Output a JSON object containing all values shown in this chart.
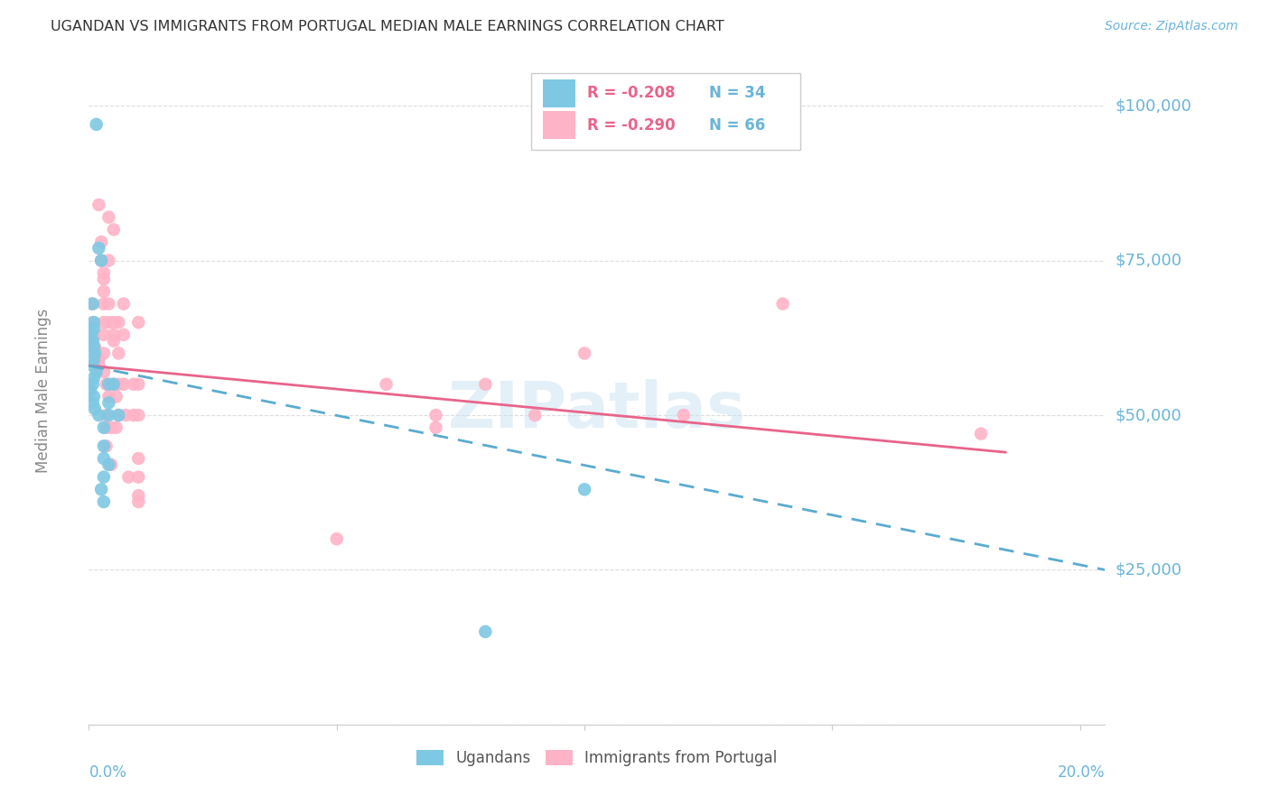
{
  "title": "UGANDAN VS IMMIGRANTS FROM PORTUGAL MEDIAN MALE EARNINGS CORRELATION CHART",
  "source": "Source: ZipAtlas.com",
  "ylabel": "Median Male Earnings",
  "y_ticks": [
    0,
    25000,
    50000,
    75000,
    100000
  ],
  "y_tick_labels": [
    "",
    "$25,000",
    "$50,000",
    "$75,000",
    "$100,000"
  ],
  "xmin": 0.0,
  "xmax": 0.205,
  "ymin": 0,
  "ymax": 108000,
  "legend_r_blue": "R = -0.208",
  "legend_n_blue": "N = 34",
  "legend_r_pink": "R = -0.290",
  "legend_n_pink": "N = 66",
  "legend_label_blue": "Ugandans",
  "legend_label_pink": "Immigrants from Portugal",
  "blue_color": "#7ec8e3",
  "blue_line_color": "#5aabcf",
  "pink_color": "#ffb3c6",
  "pink_line_color": "#e8648a",
  "blue_scatter": [
    [
      0.0015,
      97000
    ],
    [
      0.0008,
      68000
    ],
    [
      0.002,
      77000
    ],
    [
      0.0025,
      75000
    ],
    [
      0.001,
      65000
    ],
    [
      0.001,
      64000
    ],
    [
      0.0005,
      63000
    ],
    [
      0.0008,
      62000
    ],
    [
      0.001,
      61000
    ],
    [
      0.0012,
      60000
    ],
    [
      0.001,
      59000
    ],
    [
      0.0008,
      58000
    ],
    [
      0.0015,
      57000
    ],
    [
      0.001,
      56000
    ],
    [
      0.0008,
      55000
    ],
    [
      0.0003,
      54000
    ],
    [
      0.001,
      53000
    ],
    [
      0.0008,
      52000
    ],
    [
      0.0012,
      51000
    ],
    [
      0.002,
      50000
    ],
    [
      0.003,
      48000
    ],
    [
      0.003,
      45000
    ],
    [
      0.003,
      43000
    ],
    [
      0.003,
      40000
    ],
    [
      0.0025,
      38000
    ],
    [
      0.003,
      36000
    ],
    [
      0.004,
      55000
    ],
    [
      0.004,
      52000
    ],
    [
      0.004,
      50000
    ],
    [
      0.004,
      42000
    ],
    [
      0.005,
      55000
    ],
    [
      0.006,
      50000
    ],
    [
      0.1,
      38000
    ],
    [
      0.08,
      15000
    ]
  ],
  "pink_scatter": [
    [
      0.0005,
      68000
    ],
    [
      0.0008,
      65000
    ],
    [
      0.001,
      63000
    ],
    [
      0.0008,
      62000
    ],
    [
      0.0012,
      61000
    ],
    [
      0.0015,
      60000
    ],
    [
      0.002,
      59000
    ],
    [
      0.002,
      58000
    ],
    [
      0.002,
      84000
    ],
    [
      0.0025,
      78000
    ],
    [
      0.0025,
      75000
    ],
    [
      0.003,
      73000
    ],
    [
      0.003,
      72000
    ],
    [
      0.003,
      70000
    ],
    [
      0.003,
      68000
    ],
    [
      0.003,
      65000
    ],
    [
      0.003,
      63000
    ],
    [
      0.003,
      60000
    ],
    [
      0.003,
      57000
    ],
    [
      0.0035,
      55000
    ],
    [
      0.0035,
      50000
    ],
    [
      0.0035,
      48000
    ],
    [
      0.0035,
      45000
    ],
    [
      0.004,
      82000
    ],
    [
      0.004,
      75000
    ],
    [
      0.004,
      68000
    ],
    [
      0.004,
      65000
    ],
    [
      0.004,
      55000
    ],
    [
      0.004,
      53000
    ],
    [
      0.0045,
      48000
    ],
    [
      0.0045,
      42000
    ],
    [
      0.005,
      80000
    ],
    [
      0.005,
      65000
    ],
    [
      0.005,
      63000
    ],
    [
      0.005,
      62000
    ],
    [
      0.005,
      55000
    ],
    [
      0.0055,
      53000
    ],
    [
      0.0055,
      48000
    ],
    [
      0.006,
      65000
    ],
    [
      0.006,
      60000
    ],
    [
      0.006,
      55000
    ],
    [
      0.006,
      50000
    ],
    [
      0.007,
      68000
    ],
    [
      0.007,
      63000
    ],
    [
      0.007,
      55000
    ],
    [
      0.0075,
      50000
    ],
    [
      0.008,
      40000
    ],
    [
      0.009,
      55000
    ],
    [
      0.009,
      50000
    ],
    [
      0.01,
      43000
    ],
    [
      0.01,
      65000
    ],
    [
      0.01,
      55000
    ],
    [
      0.01,
      50000
    ],
    [
      0.01,
      40000
    ],
    [
      0.01,
      37000
    ],
    [
      0.01,
      36000
    ],
    [
      0.05,
      30000
    ],
    [
      0.06,
      55000
    ],
    [
      0.07,
      50000
    ],
    [
      0.07,
      48000
    ],
    [
      0.08,
      55000
    ],
    [
      0.09,
      50000
    ],
    [
      0.1,
      60000
    ],
    [
      0.12,
      50000
    ],
    [
      0.14,
      68000
    ],
    [
      0.18,
      47000
    ]
  ],
  "blue_line": {
    "x0": 0.0,
    "x1": 0.205,
    "y0": 58000,
    "y1": 25000
  },
  "pink_line": {
    "x0": 0.0,
    "x1": 0.185,
    "y0": 58000,
    "y1": 44000
  },
  "watermark": "ZIPatlas",
  "background_color": "#ffffff",
  "grid_color": "#dddddd",
  "title_color": "#333333",
  "axis_label_color": "#6ab5d8",
  "tick_color": "#6ab5d8",
  "ylabel_color": "#888888"
}
